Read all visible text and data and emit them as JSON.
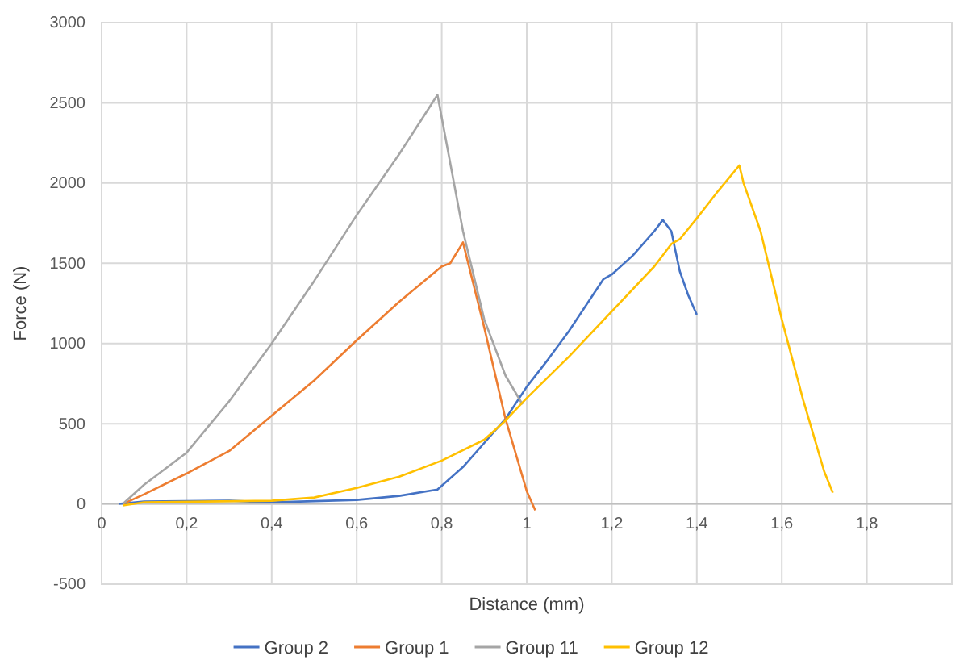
{
  "chart_data": {
    "type": "line",
    "xlabel": "Distance (mm)",
    "ylabel": "Force (N)",
    "xlim": [
      0,
      2
    ],
    "xticks": [
      0,
      {
        "value": 0.2,
        "label": "0,2"
      },
      {
        "value": 0.4,
        "label": "0,4"
      },
      {
        "value": 0.6,
        "label": "0,6"
      },
      {
        "value": 0.8,
        "label": "0,8"
      },
      1,
      {
        "value": 1.2,
        "label": "1,2"
      },
      {
        "value": 1.4,
        "label": "1,4"
      },
      {
        "value": 1.6,
        "label": "1,6"
      },
      {
        "value": 1.8,
        "label": "1,8"
      }
    ],
    "ylim": [
      -500,
      3000
    ],
    "yticks": [
      -500,
      0,
      500,
      1000,
      1500,
      2000,
      2500,
      3000
    ],
    "grid": true,
    "legend": "bottom",
    "marker": "none",
    "series": [
      {
        "name": "Group 2",
        "color": "#4472c4",
        "x": [
          0.04,
          0.1,
          0.3,
          0.4,
          0.6,
          0.7,
          0.79,
          0.85,
          0.9,
          0.95,
          1.0,
          1.05,
          1.1,
          1.15,
          1.18,
          1.2,
          1.25,
          1.3,
          1.32,
          1.34,
          1.36,
          1.38,
          1.4
        ],
        "values": [
          0,
          15,
          20,
          10,
          25,
          50,
          90,
          230,
          380,
          530,
          730,
          900,
          1080,
          1280,
          1400,
          1430,
          1550,
          1700,
          1770,
          1700,
          1450,
          1300,
          1180
        ]
      },
      {
        "name": "Group 1",
        "color": "#ed7d31",
        "x": [
          0.05,
          0.1,
          0.2,
          0.3,
          0.4,
          0.5,
          0.6,
          0.7,
          0.8,
          0.82,
          0.85,
          0.9,
          0.95,
          1.0,
          1.02
        ],
        "values": [
          0,
          60,
          190,
          330,
          550,
          770,
          1020,
          1260,
          1480,
          1500,
          1630,
          1100,
          530,
          80,
          -40
        ]
      },
      {
        "name": "Group 11",
        "color": "#a5a5a5",
        "x": [
          0.05,
          0.1,
          0.2,
          0.3,
          0.4,
          0.5,
          0.6,
          0.7,
          0.79,
          0.85,
          0.9,
          0.95,
          0.99
        ],
        "values": [
          0,
          120,
          320,
          640,
          1000,
          1390,
          1800,
          2180,
          2550,
          1700,
          1150,
          800,
          620
        ]
      },
      {
        "name": "Group 12",
        "color": "#ffc000",
        "x": [
          0.05,
          0.1,
          0.4,
          0.5,
          0.6,
          0.7,
          0.8,
          0.9,
          0.95,
          1.0,
          1.1,
          1.2,
          1.3,
          1.34,
          1.36,
          1.4,
          1.45,
          1.5,
          1.51,
          1.55,
          1.6,
          1.65,
          1.7,
          1.72
        ],
        "values": [
          -10,
          10,
          20,
          40,
          100,
          170,
          270,
          400,
          520,
          660,
          920,
          1200,
          1480,
          1620,
          1650,
          1780,
          1950,
          2110,
          2000,
          1700,
          1150,
          650,
          200,
          70
        ]
      }
    ]
  }
}
